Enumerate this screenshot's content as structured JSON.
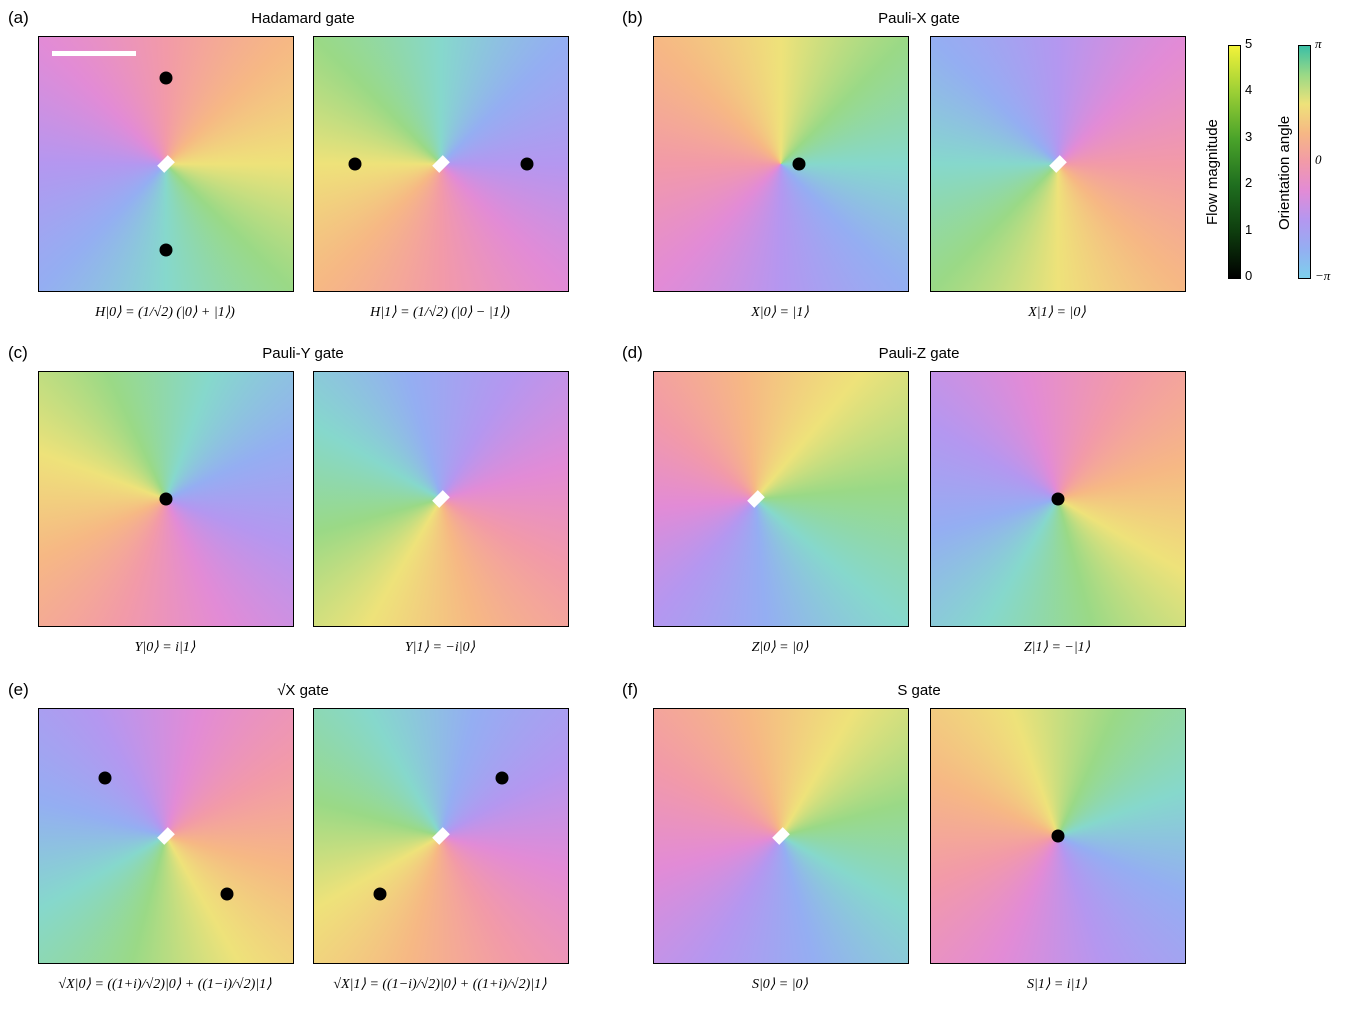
{
  "panels": [
    {
      "label": "(a)",
      "title": "Hadamard gate",
      "captions": [
        "H|0⟩ = (1/√2) (|0⟩ + |1⟩)",
        "H|1⟩ = (1/√2) (|0⟩ − |1⟩)"
      ]
    },
    {
      "label": "(b)",
      "title": "Pauli-X gate",
      "captions": [
        "X|0⟩ = |1⟩",
        "X|1⟩ = |0⟩"
      ]
    },
    {
      "label": "(c)",
      "title": "Pauli-Y gate",
      "captions": [
        "Y|0⟩ = i|1⟩",
        "Y|1⟩ = −i|0⟩"
      ]
    },
    {
      "label": "(d)",
      "title": "Pauli-Z gate",
      "captions": [
        "Z|0⟩ = |0⟩",
        "Z|1⟩ = −|1⟩"
      ]
    },
    {
      "label": "(e)",
      "title": "√X gate",
      "captions": [
        "√X|0⟩ = ((1+i)/√2)|0⟩ + ((1−i)/√2)|1⟩",
        "√X|1⟩ = ((1−i)/√2)|0⟩ + ((1+i)/√2)|1⟩"
      ]
    },
    {
      "label": "(f)",
      "title": "S gate",
      "captions": [
        "S|0⟩ = |0⟩",
        "S|1⟩ = i|1⟩"
      ]
    }
  ],
  "colorbars": {
    "magnitude": {
      "label": "Flow magnitude",
      "ticks": [
        0,
        1,
        2,
        3,
        4,
        5
      ]
    },
    "orientation": {
      "label": "Orientation angle",
      "ticks": [
        "π",
        "0",
        "−π"
      ]
    }
  }
}
